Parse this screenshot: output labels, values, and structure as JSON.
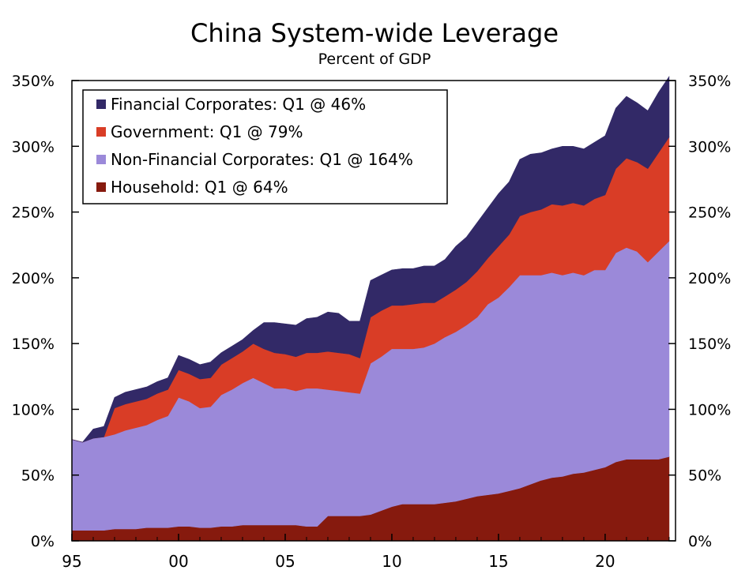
{
  "chart_data": {
    "type": "area",
    "title": "China System-wide Leverage",
    "subtitle": "Percent of GDP",
    "xlabel": "",
    "ylabel": "",
    "x_ticks": [
      "95",
      "00",
      "05",
      "10",
      "15",
      "20"
    ],
    "x_tick_years": [
      1995,
      2000,
      2005,
      2010,
      2015,
      2020
    ],
    "y_ticks": [
      "0%",
      "50%",
      "100%",
      "150%",
      "200%",
      "250%",
      "300%",
      "350%"
    ],
    "y_tick_values": [
      0,
      50,
      100,
      150,
      200,
      250,
      300,
      350
    ],
    "xlim": [
      1995,
      2023.3
    ],
    "ylim": [
      0,
      350
    ],
    "grid": false,
    "legend_position": "top-left",
    "stacked": true,
    "x": [
      1995.0,
      1995.5,
      1996.0,
      1996.5,
      1997.0,
      1997.5,
      1998.0,
      1998.5,
      1999.0,
      1999.5,
      2000.0,
      2000.5,
      2001.0,
      2001.5,
      2002.0,
      2002.5,
      2003.0,
      2003.5,
      2004.0,
      2004.5,
      2005.0,
      2005.5,
      2006.0,
      2006.5,
      2007.0,
      2007.5,
      2008.0,
      2008.5,
      2009.0,
      2009.5,
      2010.0,
      2010.5,
      2011.0,
      2011.5,
      2012.0,
      2012.5,
      2013.0,
      2013.5,
      2014.0,
      2014.5,
      2015.0,
      2015.5,
      2016.0,
      2016.5,
      2017.0,
      2017.5,
      2018.0,
      2018.5,
      2019.0,
      2019.5,
      2020.0,
      2020.5,
      2021.0,
      2021.5,
      2022.0,
      2022.5,
      2023.0
    ],
    "series": [
      {
        "name": "Household: Q1 @ 64%",
        "color": "#861A0E",
        "values": [
          8,
          8,
          8,
          8,
          9,
          9,
          9,
          10,
          10,
          10,
          11,
          11,
          10,
          10,
          11,
          11,
          12,
          12,
          12,
          12,
          12,
          12,
          11,
          11,
          19,
          19,
          19,
          19,
          20,
          23,
          26,
          28,
          28,
          28,
          28,
          29,
          30,
          32,
          34,
          35,
          36,
          38,
          40,
          43,
          46,
          48,
          49,
          51,
          52,
          54,
          56,
          60,
          62,
          62,
          62,
          62,
          64
        ]
      },
      {
        "name": "Non-Financial Corporates: Q1 @ 164%",
        "color": "#9B89D9",
        "values": [
          69,
          67,
          70,
          71,
          72,
          75,
          77,
          78,
          82,
          85,
          98,
          95,
          91,
          92,
          100,
          104,
          108,
          112,
          108,
          104,
          104,
          102,
          105,
          105,
          96,
          95,
          94,
          93,
          115,
          117,
          120,
          118,
          118,
          119,
          122,
          126,
          129,
          132,
          136,
          145,
          149,
          155,
          162,
          159,
          156,
          156,
          153,
          153,
          150,
          152,
          150,
          159,
          161,
          158,
          150,
          158,
          164
        ]
      },
      {
        "name": "Government: Q1 @ 79%",
        "color": "#D93D26",
        "values": [
          0,
          0,
          0,
          0,
          20,
          20,
          20,
          20,
          20,
          20,
          21,
          21,
          22,
          22,
          23,
          24,
          24,
          26,
          26,
          27,
          26,
          26,
          27,
          27,
          29,
          29,
          29,
          27,
          35,
          35,
          33,
          33,
          34,
          34,
          31,
          31,
          32,
          33,
          35,
          35,
          39,
          40,
          45,
          48,
          50,
          52,
          53,
          53,
          53,
          54,
          57,
          64,
          68,
          68,
          71,
          75,
          79
        ]
      },
      {
        "name": "Financial Corporates: Q1 @ 46%",
        "color": "#322967",
        "values": [
          0,
          0,
          7,
          8,
          8,
          9,
          9,
          9,
          9,
          9,
          11,
          11,
          11,
          12,
          9,
          9,
          9,
          10,
          20,
          23,
          23,
          24,
          26,
          27,
          30,
          30,
          25,
          28,
          28,
          27,
          27,
          28,
          27,
          28,
          28,
          28,
          33,
          34,
          37,
          38,
          40,
          40,
          43,
          44,
          43,
          42,
          45,
          43,
          43,
          43,
          45,
          46,
          47,
          45,
          44,
          46,
          46
        ]
      }
    ],
    "legend": [
      {
        "label": "Financial Corporates: Q1 @ 46%",
        "color": "#322967"
      },
      {
        "label": "Government: Q1 @ 79%",
        "color": "#D93D26"
      },
      {
        "label": "Non-Financial Corporates: Q1 @ 164%",
        "color": "#9B89D9"
      },
      {
        "label": "Household: Q1 @ 64%",
        "color": "#861A0E"
      }
    ]
  }
}
